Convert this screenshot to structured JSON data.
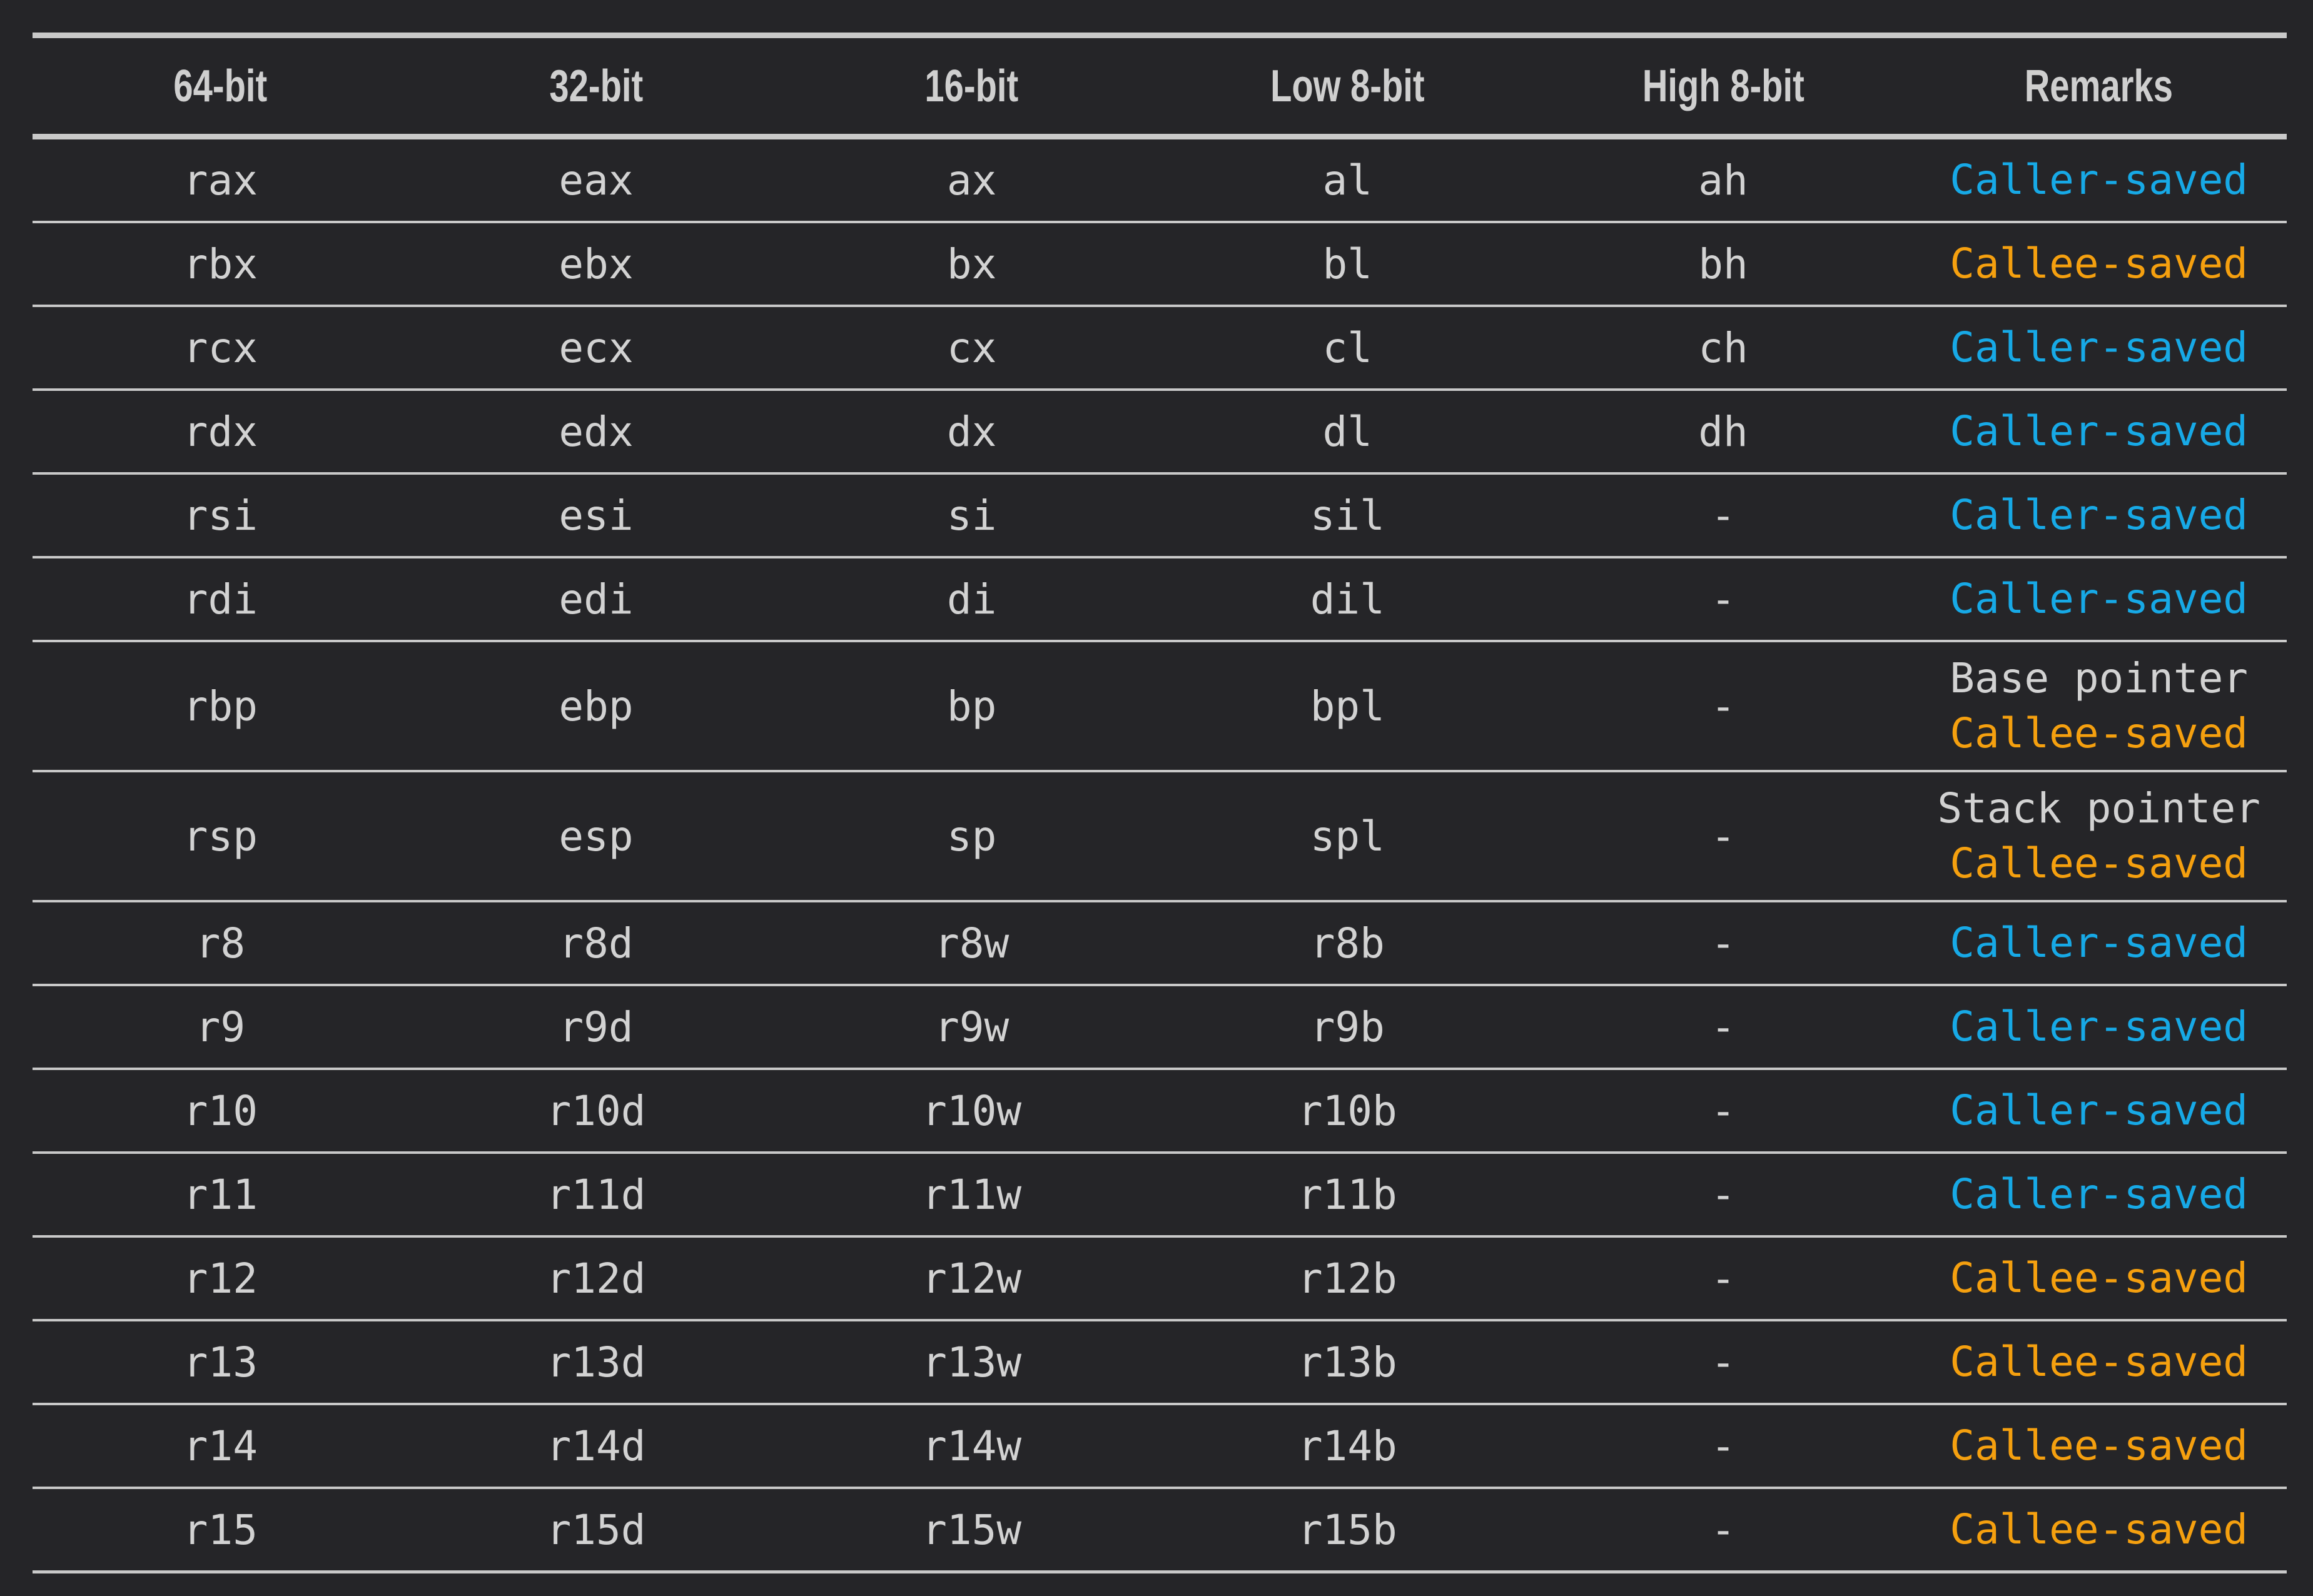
{
  "colors": {
    "background": "#252528",
    "text": "#d2d2d2",
    "rule": "#c9c9c9",
    "caller_saved": "#17a9e6",
    "callee_saved": "#f5a00f"
  },
  "headers": [
    "64-bit",
    "32-bit",
    "16-bit",
    "Low 8-bit",
    "High 8-bit",
    "Remarks"
  ],
  "rows": [
    {
      "r64": "rax",
      "r32": "eax",
      "r16": "ax",
      "low8": "al",
      "high8": "ah",
      "note": "",
      "remark": "Caller-saved",
      "kind": "caller"
    },
    {
      "r64": "rbx",
      "r32": "ebx",
      "r16": "bx",
      "low8": "bl",
      "high8": "bh",
      "note": "",
      "remark": "Callee-saved",
      "kind": "callee"
    },
    {
      "r64": "rcx",
      "r32": "ecx",
      "r16": "cx",
      "low8": "cl",
      "high8": "ch",
      "note": "",
      "remark": "Caller-saved",
      "kind": "caller"
    },
    {
      "r64": "rdx",
      "r32": "edx",
      "r16": "dx",
      "low8": "dl",
      "high8": "dh",
      "note": "",
      "remark": "Caller-saved",
      "kind": "caller"
    },
    {
      "r64": "rsi",
      "r32": "esi",
      "r16": "si",
      "low8": "sil",
      "high8": "-",
      "note": "",
      "remark": "Caller-saved",
      "kind": "caller"
    },
    {
      "r64": "rdi",
      "r32": "edi",
      "r16": "di",
      "low8": "dil",
      "high8": "-",
      "note": "",
      "remark": "Caller-saved",
      "kind": "caller"
    },
    {
      "r64": "rbp",
      "r32": "ebp",
      "r16": "bp",
      "low8": "bpl",
      "high8": "-",
      "note": "Base pointer",
      "remark": "Callee-saved",
      "kind": "callee"
    },
    {
      "r64": "rsp",
      "r32": "esp",
      "r16": "sp",
      "low8": "spl",
      "high8": "-",
      "note": "Stack pointer",
      "remark": "Callee-saved",
      "kind": "callee"
    },
    {
      "r64": "r8",
      "r32": "r8d",
      "r16": "r8w",
      "low8": "r8b",
      "high8": "-",
      "note": "",
      "remark": "Caller-saved",
      "kind": "caller"
    },
    {
      "r64": "r9",
      "r32": "r9d",
      "r16": "r9w",
      "low8": "r9b",
      "high8": "-",
      "note": "",
      "remark": "Caller-saved",
      "kind": "caller"
    },
    {
      "r64": "r10",
      "r32": "r10d",
      "r16": "r10w",
      "low8": "r10b",
      "high8": "-",
      "note": "",
      "remark": "Caller-saved",
      "kind": "caller"
    },
    {
      "r64": "r11",
      "r32": "r11d",
      "r16": "r11w",
      "low8": "r11b",
      "high8": "-",
      "note": "",
      "remark": "Caller-saved",
      "kind": "caller"
    },
    {
      "r64": "r12",
      "r32": "r12d",
      "r16": "r12w",
      "low8": "r12b",
      "high8": "-",
      "note": "",
      "remark": "Callee-saved",
      "kind": "callee"
    },
    {
      "r64": "r13",
      "r32": "r13d",
      "r16": "r13w",
      "low8": "r13b",
      "high8": "-",
      "note": "",
      "remark": "Callee-saved",
      "kind": "callee"
    },
    {
      "r64": "r14",
      "r32": "r14d",
      "r16": "r14w",
      "low8": "r14b",
      "high8": "-",
      "note": "",
      "remark": "Callee-saved",
      "kind": "callee"
    },
    {
      "r64": "r15",
      "r32": "r15d",
      "r16": "r15w",
      "low8": "r15b",
      "high8": "-",
      "note": "",
      "remark": "Callee-saved",
      "kind": "callee"
    }
  ]
}
